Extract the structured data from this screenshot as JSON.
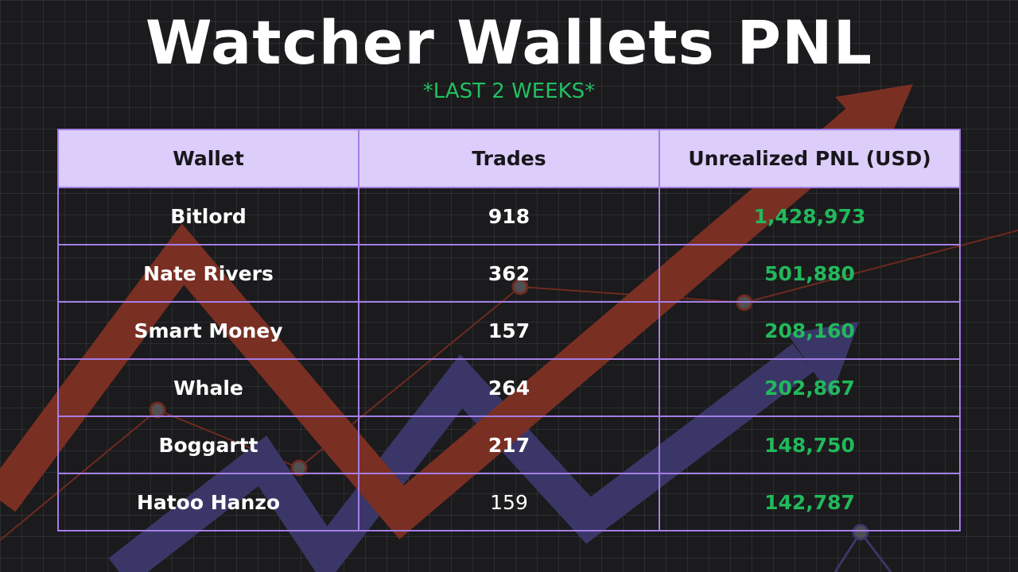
{
  "title": "Watcher Wallets PNL",
  "subtitle": "*LAST 2 WEEKS*",
  "colors": {
    "background": "#1b1a1c",
    "header_fill": "#dccdfb",
    "border": "#a47ee6",
    "pnl_green": "#22b85c",
    "subtitle_green": "#21c061",
    "arrow_red": "#7a2f23",
    "arrow_navy": "#3a3768"
  },
  "table": {
    "headers": [
      "Wallet",
      "Trades",
      "Unrealized PNL (USD)"
    ],
    "rows": [
      {
        "wallet": "Bitlord",
        "trades": "918",
        "pnl": "1,428,973"
      },
      {
        "wallet": "Nate Rivers",
        "trades": "362",
        "pnl": "501,880"
      },
      {
        "wallet": "Smart Money",
        "trades": "157",
        "pnl": "208,160"
      },
      {
        "wallet": "Whale",
        "trades": "264",
        "pnl": "202,867"
      },
      {
        "wallet": "Boggartt",
        "trades": "217",
        "pnl": "148,750"
      },
      {
        "wallet": "Hatoo Hanzo",
        "trades": "159",
        "pnl": "142,787"
      }
    ]
  }
}
